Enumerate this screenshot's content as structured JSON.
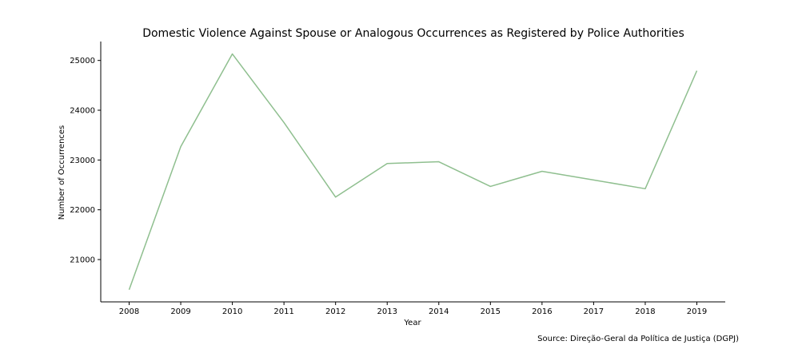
{
  "chart_data": {
    "type": "line",
    "title": "Domestic Violence Against Spouse or Analogous Occurrences as Registered by Police Authorities",
    "xlabel": "Year",
    "ylabel": "Number of Occurrences",
    "x": [
      "2008",
      "2009",
      "2010",
      "2011",
      "2012",
      "2013",
      "2014",
      "2015",
      "2016",
      "2017",
      "2018",
      "2019"
    ],
    "xticks": [
      "2008",
      "2009",
      "2010",
      "2011",
      "2012",
      "2013",
      "2014",
      "2015",
      "2016",
      "2017",
      "2018",
      "2019"
    ],
    "series": [
      {
        "name": "Occurrences",
        "color": "#8fbf8f",
        "values": [
          20395,
          23268,
          25131,
          23752,
          22255,
          22929,
          22965,
          22469,
          22773,
          22599,
          22423,
          24793
        ]
      }
    ],
    "yticks": [
      21000,
      22000,
      23000,
      24000,
      25000
    ],
    "ylim": [
      20150,
      25380
    ],
    "xlim": [
      2007.45,
      2019.55
    ],
    "grid": false,
    "source": "Source: Direção-Geral da Política de Justiça (DGPJ)"
  }
}
